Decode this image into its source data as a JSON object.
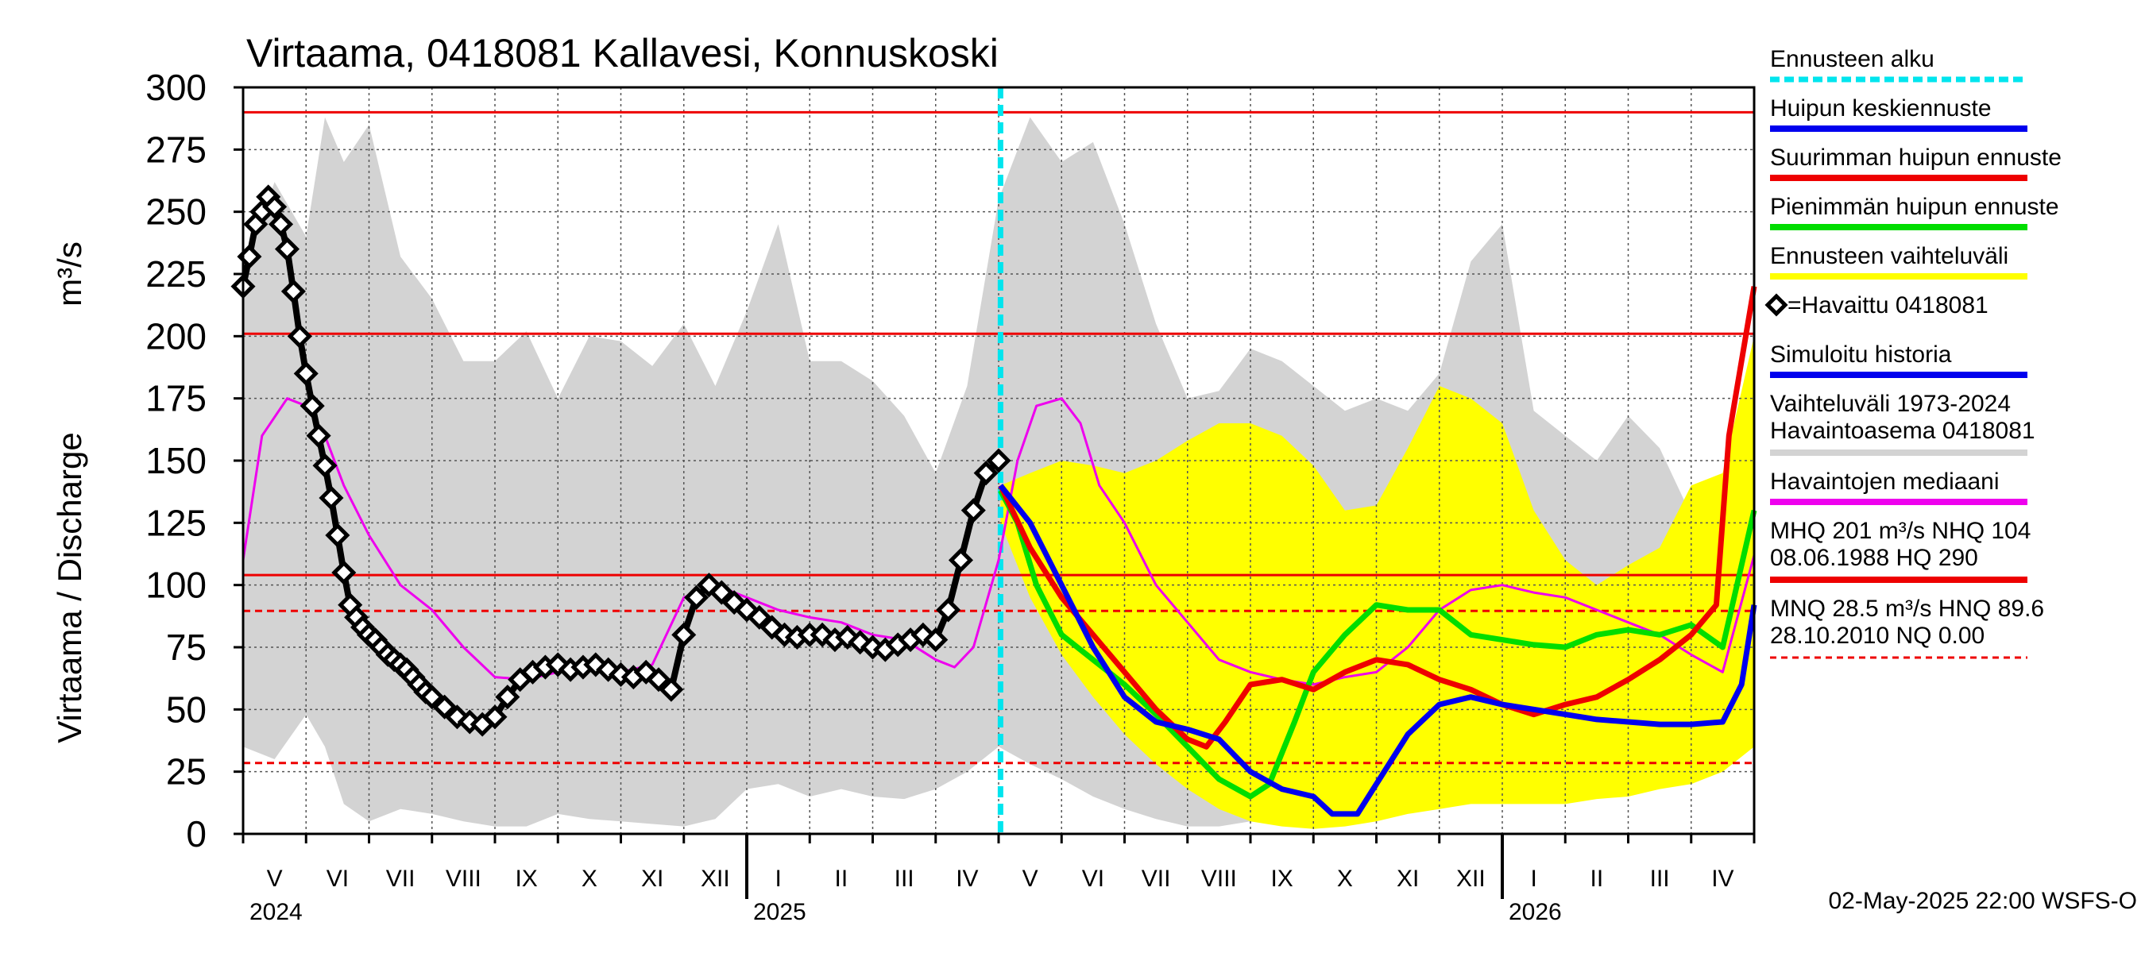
{
  "chart_data": {
    "type": "line",
    "title": "Virtaama, 0418081 Kallavesi, Konnuskoski",
    "ylabel": "Virtaama / Discharge",
    "yunit": "m³/s",
    "ylim": [
      0,
      300
    ],
    "yticks": [
      0,
      25,
      50,
      75,
      100,
      125,
      150,
      175,
      200,
      225,
      250,
      275,
      300
    ],
    "grid": true,
    "legend_position": "right",
    "xlim_months": [
      0,
      24
    ],
    "month_labels": [
      "V",
      "VI",
      "VII",
      "VIII",
      "IX",
      "X",
      "XI",
      "XII",
      "I",
      "II",
      "III",
      "IV",
      "V",
      "VI",
      "VII",
      "VIII",
      "IX",
      "X",
      "XI",
      "XII",
      "I",
      "II",
      "III",
      "IV"
    ],
    "year_labels": [
      {
        "label": "2024",
        "month": 0
      },
      {
        "label": "2025",
        "month": 8
      },
      {
        "label": "2026",
        "month": 20
      }
    ],
    "year_separators": [
      8,
      20
    ],
    "forecast_start_month": 12.03,
    "reference_lines": [
      {
        "name": "HQ",
        "value": 290,
        "color": "#ee0000",
        "style": "solid"
      },
      {
        "name": "MHQ",
        "value": 201,
        "color": "#ee0000",
        "style": "solid"
      },
      {
        "name": "NHQ",
        "value": 104,
        "color": "#ee0000",
        "style": "solid"
      },
      {
        "name": "HNQ",
        "value": 89.6,
        "color": "#ee0000",
        "style": "dashed"
      },
      {
        "name": "MNQ",
        "value": 28.5,
        "color": "#ee0000",
        "style": "dashed"
      },
      {
        "name": "NQ",
        "value": 0,
        "color": "#ee0000",
        "style": "dashed"
      }
    ],
    "historical_range": {
      "name": "Vaihteluväli 1973-2024 Havaintoasema 0418081",
      "color": "#d3d3d3",
      "x": [
        0,
        0.5,
        1,
        1.3,
        1.6,
        2,
        2.5,
        3,
        3.5,
        4,
        4.5,
        5,
        5.5,
        6,
        6.5,
        7,
        7.5,
        8,
        8.5,
        9,
        9.5,
        10,
        10.5,
        11,
        11.5,
        12,
        12.5,
        13,
        13.5,
        14,
        14.5,
        15,
        15.5,
        16,
        16.5,
        17,
        17.5,
        18,
        18.5,
        19,
        19.5,
        20,
        20.5,
        21,
        21.5,
        22,
        22.5,
        23,
        23.5,
        24
      ],
      "upper": [
        225,
        262,
        240,
        288,
        270,
        285,
        232,
        215,
        190,
        190,
        202,
        175,
        200,
        198,
        188,
        205,
        180,
        210,
        245,
        190,
        190,
        182,
        168,
        145,
        180,
        255,
        288,
        270,
        278,
        245,
        205,
        175,
        178,
        195,
        190,
        180,
        170,
        175,
        170,
        185,
        230,
        245,
        170,
        160,
        150,
        168,
        155,
        128,
        140,
        155
      ],
      "lower": [
        35,
        30,
        48,
        35,
        12,
        5,
        10,
        8,
        5,
        3,
        3,
        8,
        6,
        5,
        4,
        3,
        6,
        18,
        20,
        15,
        18,
        15,
        14,
        18,
        25,
        35,
        28,
        22,
        15,
        10,
        6,
        3,
        3,
        5,
        5,
        6,
        12,
        18,
        25,
        28,
        30,
        32,
        30,
        30,
        28,
        25,
        28,
        30,
        30,
        35
      ]
    },
    "forecast_range": {
      "name": "Ennusteen vaihteluväli",
      "color": "#ffff00",
      "x": [
        12.03,
        12.5,
        13,
        13.5,
        14,
        14.5,
        15,
        15.5,
        16,
        16.5,
        17,
        17.5,
        18,
        18.5,
        19,
        19.5,
        20,
        20.5,
        21,
        21.5,
        22,
        22.5,
        23,
        23.5,
        24
      ],
      "upper": [
        140,
        145,
        150,
        148,
        145,
        150,
        158,
        165,
        165,
        160,
        148,
        130,
        132,
        155,
        180,
        175,
        165,
        130,
        110,
        100,
        108,
        115,
        140,
        145,
        200
      ],
      "lower": [
        125,
        95,
        72,
        55,
        40,
        28,
        18,
        10,
        5,
        3,
        2,
        3,
        5,
        8,
        10,
        12,
        12,
        12,
        12,
        14,
        15,
        18,
        20,
        25,
        35
      ]
    },
    "series": [
      {
        "name": "Havaintojen mediaani",
        "color": "#ee00ee",
        "width": 3,
        "x": [
          0,
          0.3,
          0.7,
          1,
          1.3,
          1.6,
          2,
          2.5,
          3,
          3.5,
          4,
          4.5,
          5,
          5.5,
          6,
          6.5,
          7,
          7.5,
          8,
          8.5,
          9,
          9.5,
          10,
          10.5,
          11,
          11.3,
          11.6,
          12,
          12.3,
          12.6,
          13,
          13.3,
          13.6,
          14,
          14.5,
          15,
          15.5,
          16,
          16.5,
          17,
          17.5,
          18,
          18.5,
          19,
          19.5,
          20,
          20.5,
          21,
          21.5,
          22,
          22.5,
          23,
          23.5,
          24
        ],
        "y": [
          110,
          160,
          175,
          172,
          160,
          140,
          120,
          100,
          90,
          75,
          63,
          62,
          65,
          66,
          65,
          68,
          95,
          100,
          95,
          90,
          87,
          85,
          80,
          78,
          70,
          67,
          75,
          110,
          150,
          172,
          175,
          165,
          140,
          125,
          100,
          85,
          70,
          65,
          62,
          60,
          63,
          65,
          75,
          90,
          98,
          100,
          97,
          95,
          90,
          85,
          80,
          72,
          65,
          112
        ]
      },
      {
        "name": "Pienimmän huipun ennuste",
        "color": "#00dd00",
        "width": 7,
        "x": [
          12.03,
          12.3,
          12.6,
          13,
          13.5,
          14,
          14.5,
          15,
          15.5,
          16,
          16.3,
          16.7,
          17,
          17.5,
          18,
          18.5,
          19,
          19.5,
          20,
          20.5,
          21,
          21.5,
          22,
          22.5,
          23,
          23.5,
          24
        ],
        "y": [
          138,
          125,
          100,
          80,
          70,
          60,
          48,
          35,
          22,
          15,
          20,
          45,
          65,
          80,
          92,
          90,
          90,
          80,
          78,
          76,
          75,
          80,
          82,
          80,
          84,
          75,
          130
        ]
      },
      {
        "name": "Suurimman huipun ennuste",
        "color": "#ee0000",
        "width": 7,
        "x": [
          12.03,
          12.5,
          13,
          13.5,
          14,
          14.5,
          15,
          15.3,
          15.6,
          16,
          16.5,
          17,
          17.5,
          18,
          18.5,
          19,
          19.5,
          20,
          20.5,
          21,
          21.5,
          22,
          22.5,
          23,
          23.4,
          23.6,
          24
        ],
        "y": [
          140,
          115,
          95,
          80,
          65,
          50,
          38,
          35,
          45,
          60,
          62,
          58,
          65,
          70,
          68,
          62,
          58,
          52,
          48,
          52,
          55,
          62,
          70,
          80,
          92,
          160,
          220
        ]
      },
      {
        "name": "Huipun keskiennuste",
        "color": "#0000ee",
        "width": 7,
        "x": [
          12.03,
          12.5,
          13,
          13.5,
          14,
          14.5,
          15,
          15.5,
          16,
          16.5,
          17,
          17.3,
          17.7,
          18,
          18.5,
          19,
          19.5,
          20,
          20.5,
          21,
          21.5,
          22,
          22.5,
          23,
          23.5,
          23.8,
          24
        ],
        "y": [
          140,
          125,
          100,
          75,
          55,
          45,
          42,
          38,
          25,
          18,
          15,
          8,
          8,
          20,
          40,
          52,
          55,
          52,
          50,
          48,
          46,
          45,
          44,
          44,
          45,
          60,
          92
        ]
      },
      {
        "name": "Havaittu 0418081",
        "color": "#000000",
        "marker": "diamond",
        "x": [
          0,
          0.1,
          0.2,
          0.3,
          0.4,
          0.5,
          0.6,
          0.7,
          0.8,
          0.9,
          1.0,
          1.1,
          1.2,
          1.3,
          1.4,
          1.5,
          1.6,
          1.7,
          1.8,
          1.9,
          2.0,
          2.1,
          2.2,
          2.3,
          2.4,
          2.5,
          2.6,
          2.7,
          2.8,
          2.9,
          3.0,
          3.2,
          3.4,
          3.6,
          3.8,
          4.0,
          4.2,
          4.4,
          4.6,
          4.8,
          5.0,
          5.2,
          5.4,
          5.6,
          5.8,
          6.0,
          6.2,
          6.4,
          6.6,
          6.8,
          7.0,
          7.2,
          7.4,
          7.6,
          7.8,
          8.0,
          8.2,
          8.4,
          8.6,
          8.8,
          9.0,
          9.2,
          9.4,
          9.6,
          9.8,
          10.0,
          10.2,
          10.4,
          10.6,
          10.8,
          11.0,
          11.2,
          11.4,
          11.6,
          11.8,
          12.0
        ],
        "y": [
          220,
          232,
          245,
          250,
          256,
          252,
          245,
          235,
          218,
          200,
          185,
          172,
          160,
          148,
          135,
          120,
          105,
          92,
          87,
          83,
          80,
          78,
          75,
          72,
          70,
          68,
          66,
          63,
          60,
          57,
          55,
          51,
          47,
          45,
          44,
          47,
          55,
          62,
          65,
          67,
          68,
          66,
          67,
          68,
          66,
          64,
          63,
          65,
          62,
          58,
          80,
          95,
          100,
          97,
          93,
          90,
          87,
          83,
          80,
          79,
          80,
          80,
          78,
          79,
          77,
          75,
          74,
          76,
          78,
          80,
          78,
          90,
          110,
          130,
          145,
          150
        ]
      }
    ],
    "legend": [
      {
        "label": "Ennusteen alku",
        "color": "#00e5ee",
        "style": "dashed"
      },
      {
        "label": "Huipun keskiennuste",
        "color": "#0000ee",
        "style": "solid"
      },
      {
        "label": "Suurimman huipun ennuste",
        "color": "#ee0000",
        "style": "solid"
      },
      {
        "label": "Pienimmän huipun ennuste",
        "color": "#00dd00",
        "style": "solid"
      },
      {
        "label": "Ennusteen vaihteluväli",
        "color": "#ffff00",
        "style": "solid"
      },
      {
        "label": "=Havaittu 0418081",
        "color": "#000000",
        "style": "diamond"
      },
      {
        "label": "Simuloitu historia",
        "color": "#0000ee",
        "style": "solid"
      },
      {
        "label": "Vaihteluväli 1973-2024",
        "label2": " Havaintoasema 0418081",
        "color": "#d3d3d3",
        "style": "solid"
      },
      {
        "label": "Havaintojen mediaani",
        "color": "#ee00ee",
        "style": "solid"
      },
      {
        "label": "MHQ  201 m³/s NHQ  104",
        "label2": "08.06.1988 HQ  290",
        "color": "#ee0000",
        "style": "solid"
      },
      {
        "label": "MNQ 28.5 m³/s HNQ 89.6",
        "label2": "28.10.2010 NQ 0.00",
        "color": "#ee0000",
        "style": "dashed"
      }
    ],
    "footer": "02-May-2025 22:00 WSFS-O"
  }
}
